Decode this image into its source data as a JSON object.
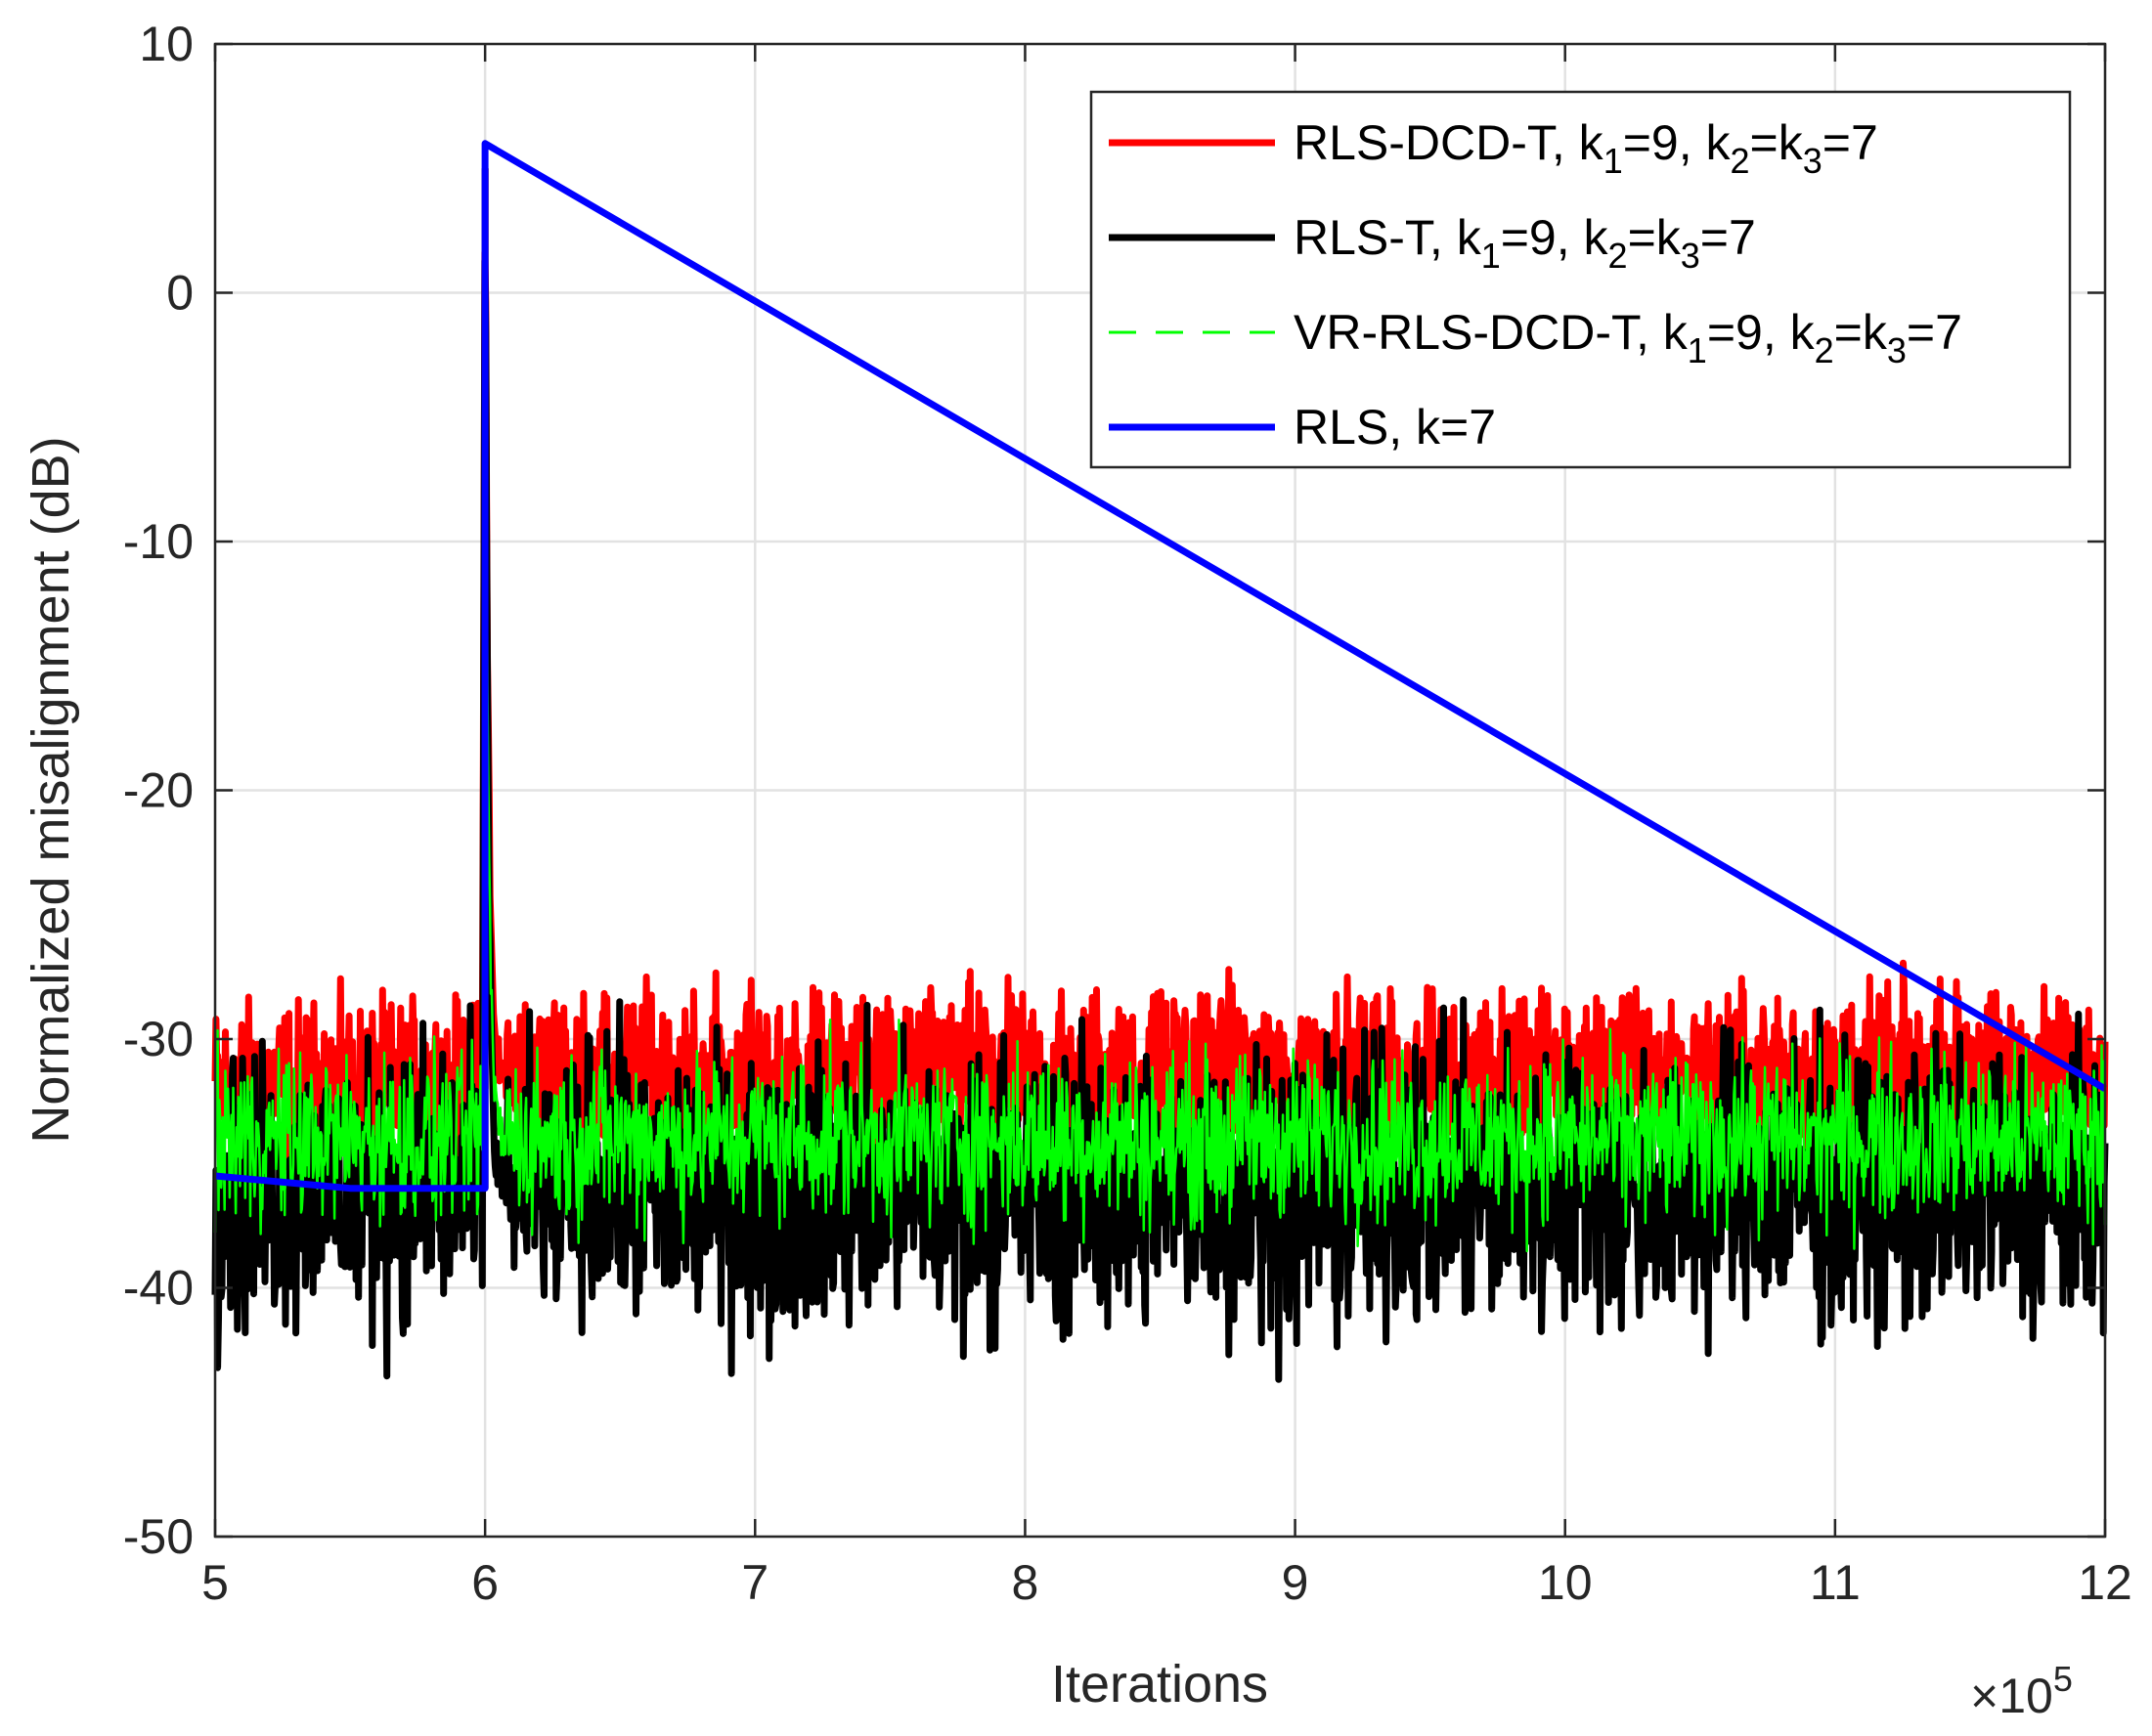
{
  "chart_data": {
    "type": "line",
    "title": "",
    "xlabel": "Iterations",
    "ylabel": "Normalized misalignment (dB)",
    "x_scale_label": {
      "times": "×",
      "base": "10",
      "exponent": "5"
    },
    "xlim": [
      5,
      12
    ],
    "ylim": [
      -50,
      10
    ],
    "xticks": [
      5,
      6,
      7,
      8,
      9,
      10,
      11,
      12
    ],
    "yticks": [
      10,
      0,
      -10,
      -20,
      -30,
      -40,
      -50
    ],
    "grid": true,
    "legend_position": "top-right",
    "legend": [
      {
        "series": "RLS-DCD-T",
        "text_a": "RLS-DCD-T, k",
        "s1": "1",
        "text_b": "=9, k",
        "s2": "2",
        "text_c": "=k",
        "s3": "3",
        "text_d": "=7"
      },
      {
        "series": "RLS-T",
        "text_a": "RLS-T, k",
        "s1": "1",
        "text_b": "=9, k",
        "s2": "2",
        "text_c": "=k",
        "s3": "3",
        "text_d": "=7"
      },
      {
        "series": "VR-RLS-DCD-T",
        "text_a": "VR-RLS-DCD-T, k",
        "s1": "1",
        "text_b": "=9, k",
        "s2": "2",
        "text_c": "=k",
        "s3": "3",
        "text_d": "=7"
      },
      {
        "series": "RLS",
        "text_a": "RLS, k=7"
      }
    ],
    "series": [
      {
        "name": "RLS-DCD-T",
        "color": "#ff0000",
        "style": "solid",
        "description": "noisy steady state, tracks change at 6e5",
        "x": [
          5.0,
          5.5,
          5.99,
          6.0,
          6.02,
          6.1,
          6.5,
          7,
          8,
          9,
          10,
          11,
          12
        ],
        "mean_db": [
          -32.0,
          -32.0,
          -32.0,
          5.0,
          -28.0,
          -31.5,
          -31.5,
          -31.5,
          -31.5,
          -31.5,
          -31.5,
          -31.5,
          -31.5
        ],
        "noise_amplitude_db": 3.0
      },
      {
        "name": "RLS-T",
        "color": "#000000",
        "style": "solid",
        "x": [
          5.0,
          5.5,
          5.99,
          6.0,
          6.02,
          6.1,
          6.5,
          7,
          8,
          9,
          10,
          11,
          12
        ],
        "mean_db": [
          -36.0,
          -36.0,
          -36.0,
          5.0,
          -30.0,
          -36.0,
          -36.0,
          -36.0,
          -36.0,
          -36.0,
          -36.0,
          -36.0,
          -36.0
        ],
        "noise_amplitude_db": 5.0
      },
      {
        "name": "VR-RLS-DCD-T",
        "color": "#00ff00",
        "style": "dashed",
        "x": [
          5.0,
          5.5,
          5.99,
          6.0,
          6.02,
          6.1,
          6.5,
          7,
          8,
          9,
          10,
          11,
          12
        ],
        "mean_db": [
          -34.0,
          -34.0,
          -34.0,
          5.0,
          -28.0,
          -34.0,
          -34.0,
          -34.0,
          -34.0,
          -34.0,
          -34.0,
          -34.0,
          -34.0
        ],
        "noise_amplitude_db": 3.0
      },
      {
        "name": "RLS",
        "color": "#0000ff",
        "style": "solid",
        "x": [
          5.0,
          5.3,
          5.5,
          5.99,
          6.0,
          6.0,
          12.0
        ],
        "y": [
          -35.5,
          -35.8,
          -36.0,
          -36.0,
          -36.0,
          6.0,
          -32.0
        ]
      }
    ]
  }
}
